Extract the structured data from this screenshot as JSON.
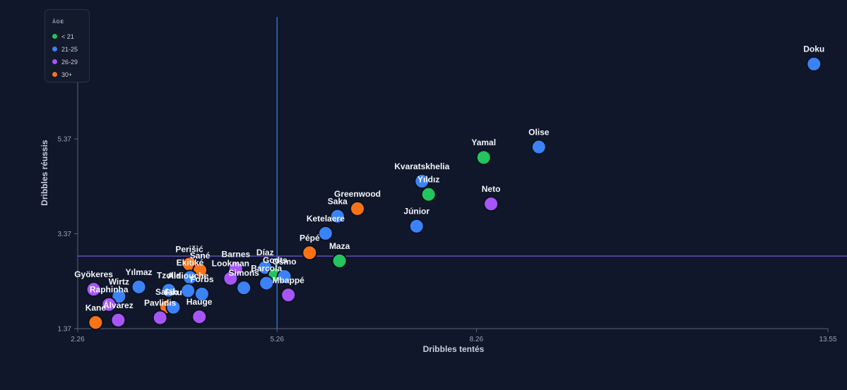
{
  "chart_data": {
    "type": "scatter",
    "title": "",
    "xlabel": "Dribbles tentés",
    "ylabel": "Dribbles réussis",
    "xlim": [
      2.26,
      13.55
    ],
    "ylim": [
      1.37,
      7.4
    ],
    "x_ticks": [
      "2.26",
      "5.26",
      "8.26",
      "13.55"
    ],
    "y_ticks": [
      "1.37",
      "3.37",
      "5.37"
    ],
    "x_ref": 5.26,
    "y_ref": 2.9,
    "grid": false,
    "legend": {
      "title": "ÂGE",
      "placement": "top-left",
      "entries": [
        {
          "label": "< 21",
          "color": "#22c55e"
        },
        {
          "label": "21-25",
          "color": "#3b82f6"
        },
        {
          "label": "26-29",
          "color": "#a855f7"
        },
        {
          "label": "30+",
          "color": "#f97316"
        }
      ]
    },
    "points": [
      {
        "label": "Doku",
        "x": 13.34,
        "y": 6.95,
        "group": "21-25"
      },
      {
        "label": "Olise",
        "x": 9.2,
        "y": 5.2,
        "group": "21-25"
      },
      {
        "label": "Yamal",
        "x": 8.37,
        "y": 4.98,
        "group": "< 21"
      },
      {
        "label": "Kvaratskhelia",
        "x": 7.44,
        "y": 4.48,
        "group": "21-25"
      },
      {
        "label": "Yıldız",
        "x": 7.54,
        "y": 4.2,
        "group": "< 21"
      },
      {
        "label": "Neto",
        "x": 8.48,
        "y": 4.0,
        "group": "26-29"
      },
      {
        "label": "Júnior",
        "x": 7.36,
        "y": 3.53,
        "group": "21-25"
      },
      {
        "label": "Greenwood",
        "x": 6.47,
        "y": 3.9,
        "group": "30+"
      },
      {
        "label": "Saka",
        "x": 6.17,
        "y": 3.74,
        "group": "21-25"
      },
      {
        "label": "Ketelaere",
        "x": 5.99,
        "y": 3.38,
        "group": "21-25"
      },
      {
        "label": "Pépé",
        "x": 5.75,
        "y": 2.97,
        "group": "30+"
      },
      {
        "label": "Maza",
        "x": 6.2,
        "y": 2.8,
        "group": "< 21"
      },
      {
        "label": "Díaz",
        "x": 5.08,
        "y": 2.66,
        "group": "21-25"
      },
      {
        "label": "Godts",
        "x": 5.23,
        "y": 2.5,
        "group": "< 21"
      },
      {
        "label": "Osmo",
        "x": 5.37,
        "y": 2.47,
        "group": "21-25"
      },
      {
        "label": "Barcola",
        "x": 5.1,
        "y": 2.33,
        "group": "21-25"
      },
      {
        "label": "Mbappé",
        "x": 5.43,
        "y": 2.08,
        "group": "26-29"
      },
      {
        "label": "Simons",
        "x": 4.76,
        "y": 2.23,
        "group": "21-25"
      },
      {
        "label": "Barnes",
        "x": 4.64,
        "y": 2.63,
        "group": "26-29"
      },
      {
        "label": "Lookman",
        "x": 4.56,
        "y": 2.43,
        "group": "26-29"
      },
      {
        "label": "Perišić",
        "x": 3.94,
        "y": 2.73,
        "group": "30+"
      },
      {
        "label": "Sané",
        "x": 4.1,
        "y": 2.6,
        "group": "30+"
      },
      {
        "label": "Ekitiké",
        "x": 3.95,
        "y": 2.45,
        "group": "21-25"
      },
      {
        "label": "Aldiouche",
        "x": 3.92,
        "y": 2.17,
        "group": "21-25"
      },
      {
        "label": "Forbs",
        "x": 4.13,
        "y": 2.1,
        "group": "21-25"
      },
      {
        "label": "Tzolis",
        "x": 3.63,
        "y": 2.18,
        "group": "21-25"
      },
      {
        "label": "Salah",
        "x": 3.6,
        "y": 1.83,
        "group": "30+"
      },
      {
        "label": "Fiku",
        "x": 3.7,
        "y": 1.82,
        "group": "21-25"
      },
      {
        "label": "Hauge",
        "x": 4.09,
        "y": 1.62,
        "group": "26-29"
      },
      {
        "label": "Pavlidis",
        "x": 3.5,
        "y": 1.6,
        "group": "26-29"
      },
      {
        "label": "Yılmaz",
        "x": 3.18,
        "y": 2.25,
        "group": "21-25"
      },
      {
        "label": "Wirtz",
        "x": 2.88,
        "y": 2.05,
        "group": "21-25"
      },
      {
        "label": "Gyökeres",
        "x": 2.5,
        "y": 2.2,
        "group": "26-29"
      },
      {
        "label": "Raphinha",
        "x": 2.73,
        "y": 1.88,
        "group": "26-29"
      },
      {
        "label": "Álvarez",
        "x": 2.87,
        "y": 1.55,
        "group": "26-29"
      },
      {
        "label": "Kane",
        "x": 2.53,
        "y": 1.5,
        "group": "30+"
      }
    ]
  }
}
